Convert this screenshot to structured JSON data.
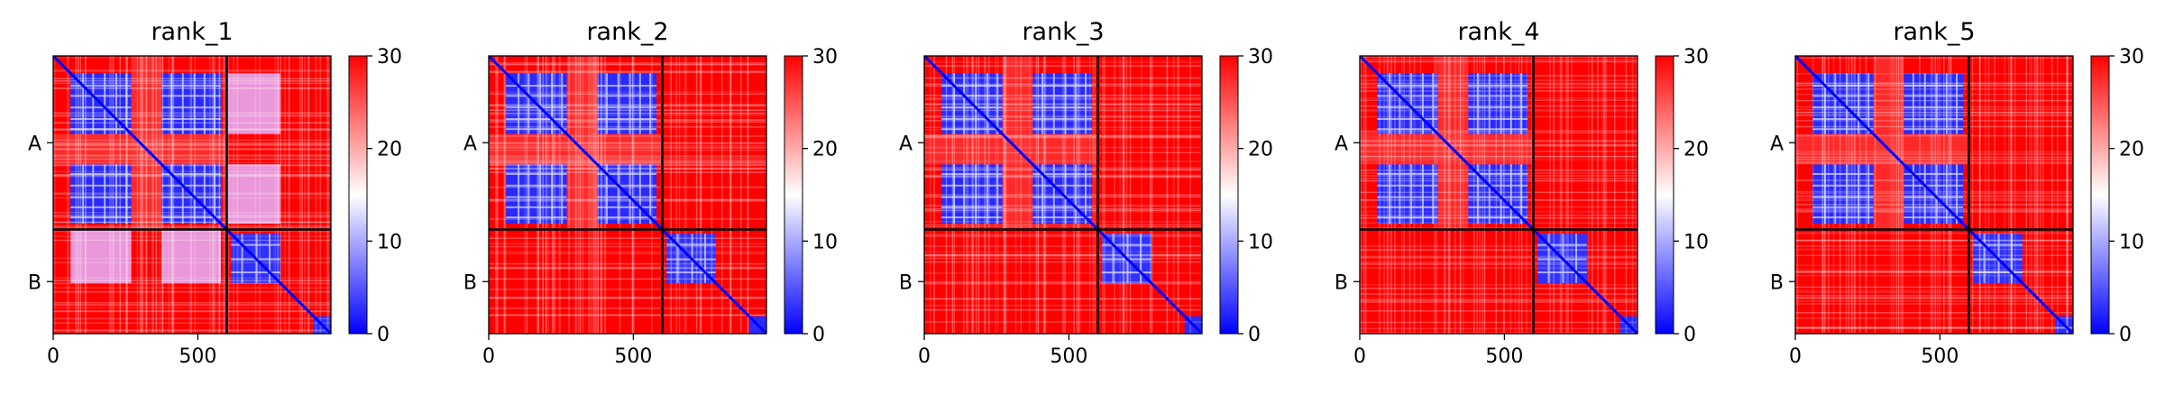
{
  "chart_data": [
    {
      "type": "heatmap",
      "title": "rank_1",
      "xticks": [
        0,
        500
      ],
      "xlim": [
        0,
        960
      ],
      "chain_boundary": 600,
      "ytick_labels": [
        "A",
        "B"
      ],
      "colorbar_ticks": [
        0,
        10,
        20,
        30
      ],
      "clim": [
        0,
        30
      ],
      "colormap": [
        "#0000ff",
        "#ffffff",
        "#ff0000"
      ],
      "inter_chain_level": "partially-confident"
    },
    {
      "type": "heatmap",
      "title": "rank_2",
      "xticks": [
        0,
        500
      ],
      "xlim": [
        0,
        960
      ],
      "chain_boundary": 600,
      "ytick_labels": [
        "A",
        "B"
      ],
      "colorbar_ticks": [
        0,
        10,
        20,
        30
      ],
      "clim": [
        0,
        30
      ],
      "colormap": [
        "#0000ff",
        "#ffffff",
        "#ff0000"
      ],
      "inter_chain_level": "high-error"
    },
    {
      "type": "heatmap",
      "title": "rank_3",
      "xticks": [
        0,
        500
      ],
      "xlim": [
        0,
        960
      ],
      "chain_boundary": 600,
      "ytick_labels": [
        "A",
        "B"
      ],
      "colorbar_ticks": [
        0,
        10,
        20,
        30
      ],
      "clim": [
        0,
        30
      ],
      "colormap": [
        "#0000ff",
        "#ffffff",
        "#ff0000"
      ],
      "inter_chain_level": "high-error"
    },
    {
      "type": "heatmap",
      "title": "rank_4",
      "xticks": [
        0,
        500
      ],
      "xlim": [
        0,
        960
      ],
      "chain_boundary": 600,
      "ytick_labels": [
        "A",
        "B"
      ],
      "colorbar_ticks": [
        0,
        10,
        20,
        30
      ],
      "clim": [
        0,
        30
      ],
      "colormap": [
        "#0000ff",
        "#ffffff",
        "#ff0000"
      ],
      "inter_chain_level": "high-error"
    },
    {
      "type": "heatmap",
      "title": "rank_5",
      "xticks": [
        0,
        500
      ],
      "xlim": [
        0,
        960
      ],
      "chain_boundary": 600,
      "ytick_labels": [
        "A",
        "B"
      ],
      "colorbar_ticks": [
        0,
        10,
        20,
        30
      ],
      "clim": [
        0,
        30
      ],
      "colormap": [
        "#0000ff",
        "#ffffff",
        "#ff0000"
      ],
      "inter_chain_level": "high-error"
    }
  ]
}
